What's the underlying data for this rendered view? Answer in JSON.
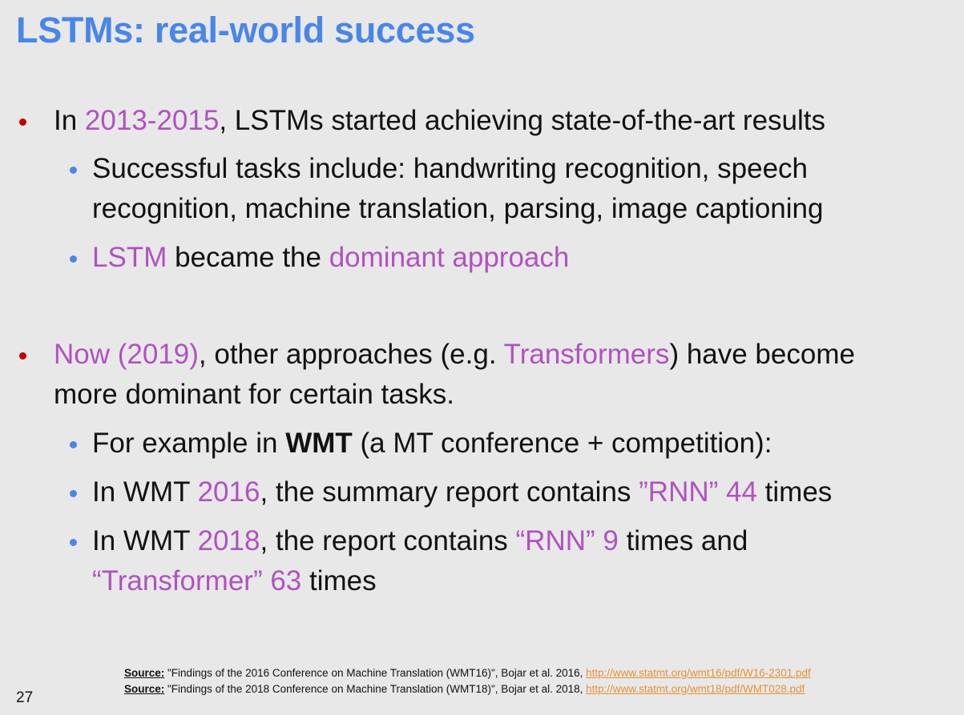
{
  "slide": {
    "title": "LSTMs: real-world success",
    "page_number": "27",
    "accent_colors": {
      "title": "#4a86e8",
      "highlight": "#b052c0",
      "bullet_level1": "#c00000",
      "bullet_level2": "#4a86e8",
      "link": "#e69138"
    }
  },
  "bullets": {
    "b1": {
      "prefix": "In ",
      "years": "2013-2015",
      "rest": ", LSTMs started achieving state-of-the-art results"
    },
    "b1_1": {
      "line1": "Successful tasks include: handwriting recognition, speech",
      "line2": "recognition, machine translation, parsing, image captioning"
    },
    "b1_2": {
      "lstm": "LSTM",
      "mid": " became the ",
      "dominant": "dominant approach"
    },
    "b2": {
      "now": "Now (2019)",
      "mid": ", other approaches (e.g. ",
      "transformers": "Transformers",
      "rest": ") have become",
      "line2": "more dominant for certain tasks."
    },
    "b2_1": {
      "prefix": "For example in ",
      "wmt": "WMT",
      "rest": " (a MT conference + competition):"
    },
    "b2_2": {
      "prefix": "In WMT ",
      "year": "2016",
      "mid": ", the summary report contains ",
      "rnn": "”RNN” 44",
      "rest": " times"
    },
    "b2_3": {
      "prefix": "In WMT ",
      "year": "2018",
      "mid": ", the report contains ",
      "rnn": "“RNN” 9",
      "rest": " times and",
      "transformer": "“Transformer” 63",
      "rest2": " times"
    }
  },
  "sources": [
    {
      "label": "Source:",
      "text": " \"Findings of the 2016 Conference on Machine Translation (WMT16)\", Bojar et al. 2016, ",
      "link": "http://www.statmt.org/wmt16/pdf/W16-2301.pdf"
    },
    {
      "label": "Source:",
      "text": " \"Findings of the 2018 Conference on Machine Translation (WMT18)\", Bojar et al. 2018, ",
      "link": "http://www.statmt.org/wmt18/pdf/WMT028.pdf"
    }
  ]
}
